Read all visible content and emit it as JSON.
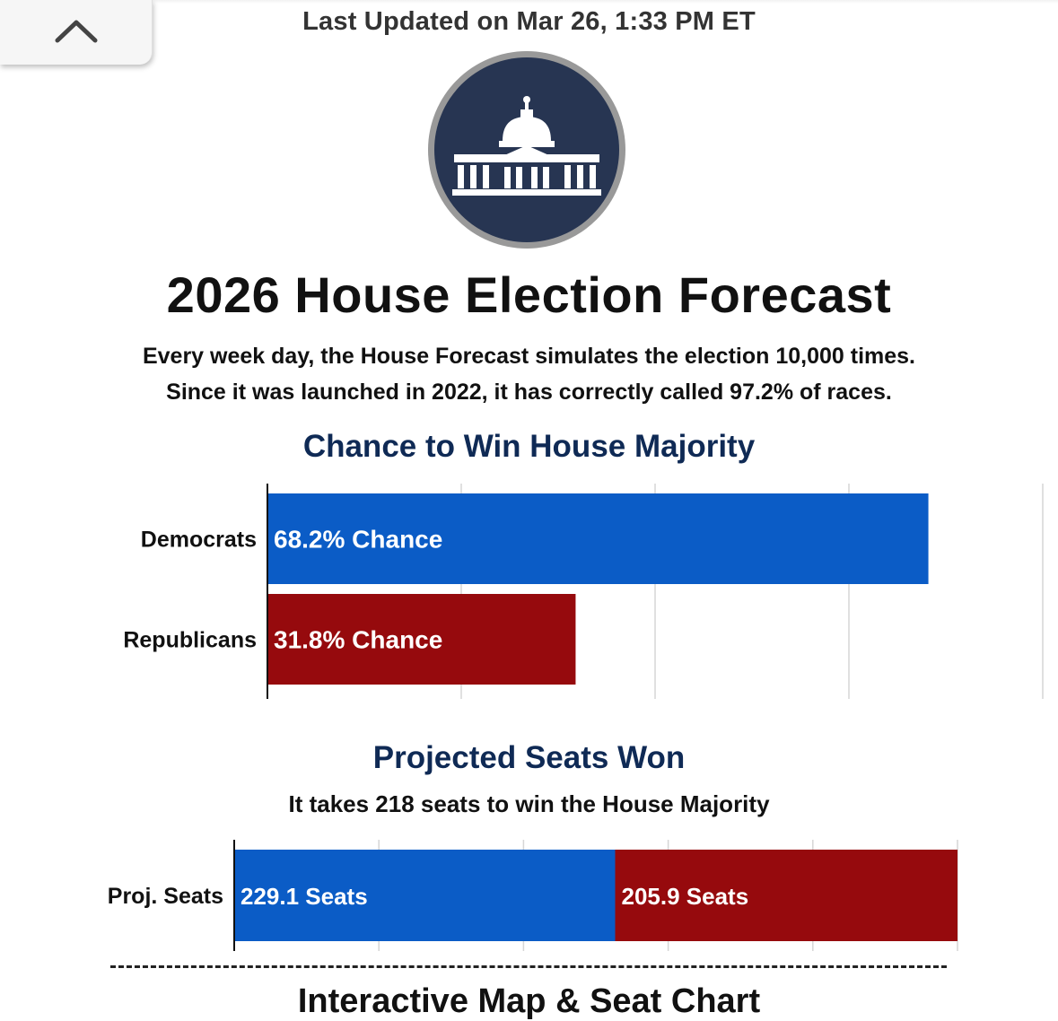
{
  "header": {
    "last_updated": "Last Updated on Mar 26, 1:33 PM ET",
    "back_icon": "chevron-up-icon",
    "logo_icon": "capitol-icon"
  },
  "page": {
    "title": "2026 House Election Forecast",
    "subtitle_line1": "Every week day, the House Forecast simulates the election 10,000 times.",
    "subtitle_line2": "Since it was launched in 2022, it has correctly called 97.2% of races.",
    "next_section_title": "Interactive Map & Seat Chart"
  },
  "colors": {
    "democrat": "#0b5cc6",
    "republican": "#960a0d",
    "title_navy": "#0f2a55",
    "logo_circle": "#273552",
    "logo_ring": "#999999"
  },
  "chart_data": [
    {
      "type": "bar",
      "orientation": "horizontal",
      "title": "Chance to Win House Majority",
      "categories": [
        "Democrats",
        "Republicans"
      ],
      "values": [
        68.2,
        31.8
      ],
      "labels": [
        "68.2% Chance",
        "31.8% Chance"
      ],
      "colors": [
        "#0b5cc6",
        "#960a0d"
      ],
      "xlim": [
        0,
        80
      ],
      "grid": true,
      "gridlines": [
        20,
        40,
        60,
        80
      ]
    },
    {
      "type": "bar",
      "orientation": "horizontal",
      "stacked": true,
      "title": "Projected Seats Won",
      "subtitle": "It takes 218 seats to win the House Majority",
      "categories": [
        "Proj. Seats"
      ],
      "series": [
        {
          "values": [
            229.1
          ],
          "label": "229.1 Seats",
          "color": "#0b5cc6"
        },
        {
          "values": [
            205.9
          ],
          "label": "205.9 Seats",
          "color": "#960a0d"
        }
      ],
      "xlim": [
        0,
        435
      ],
      "grid": true,
      "gridlines": [
        87,
        174,
        261,
        348,
        435
      ]
    }
  ]
}
